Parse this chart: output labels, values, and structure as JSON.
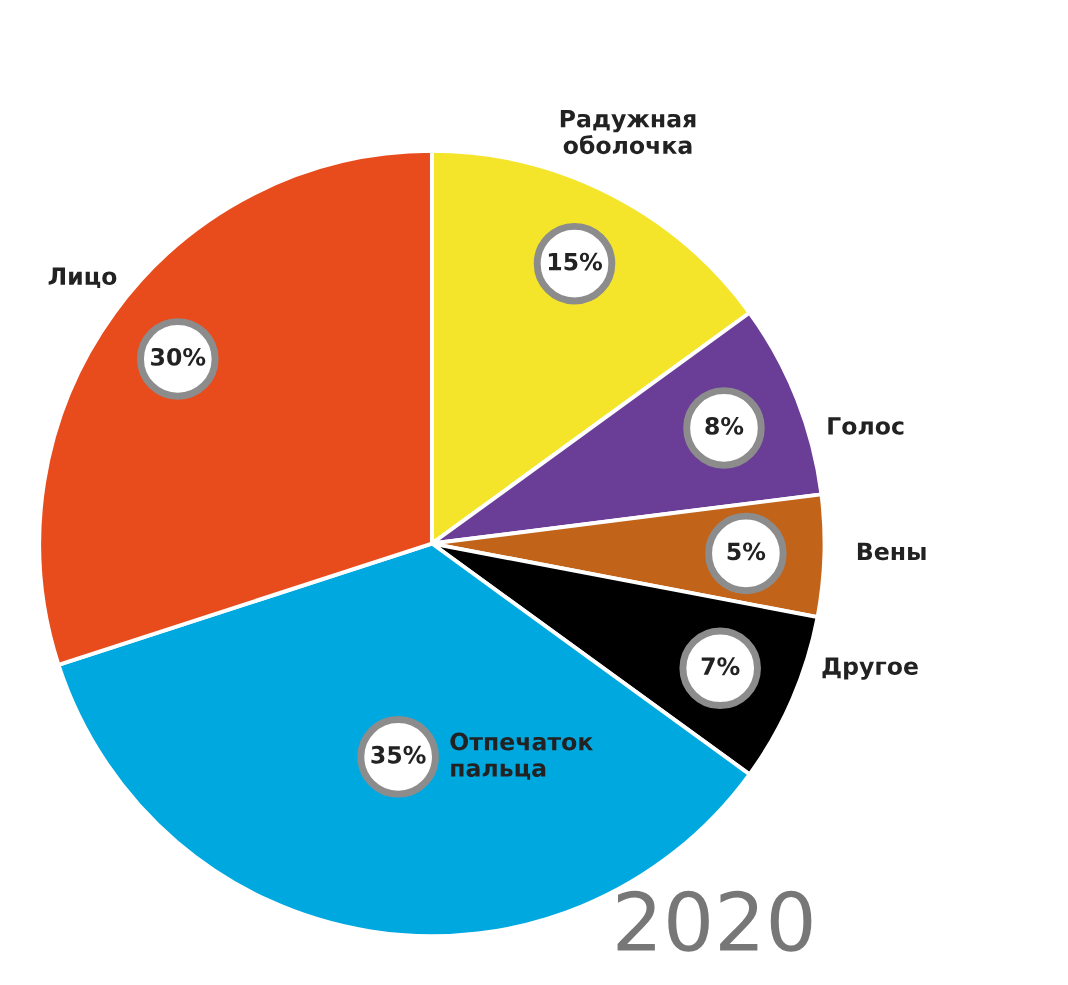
{
  "chart_data": {
    "type": "pie",
    "categories": [
      "Радужная оболочка",
      "Голос",
      "Вены",
      "Другое",
      "Отпечаток пальца",
      "Лицо"
    ],
    "values": [
      15,
      8,
      5,
      7,
      35,
      30
    ],
    "value_labels": [
      "15%",
      "8%",
      "5%",
      "7%",
      "35%",
      "30%"
    ],
    "colors": [
      "#f5e52a",
      "#6a3d96",
      "#c2631a",
      "#000000",
      "#00a8e0",
      "#e84b1c"
    ],
    "annotations": [
      "2020"
    ],
    "legend": false
  }
}
